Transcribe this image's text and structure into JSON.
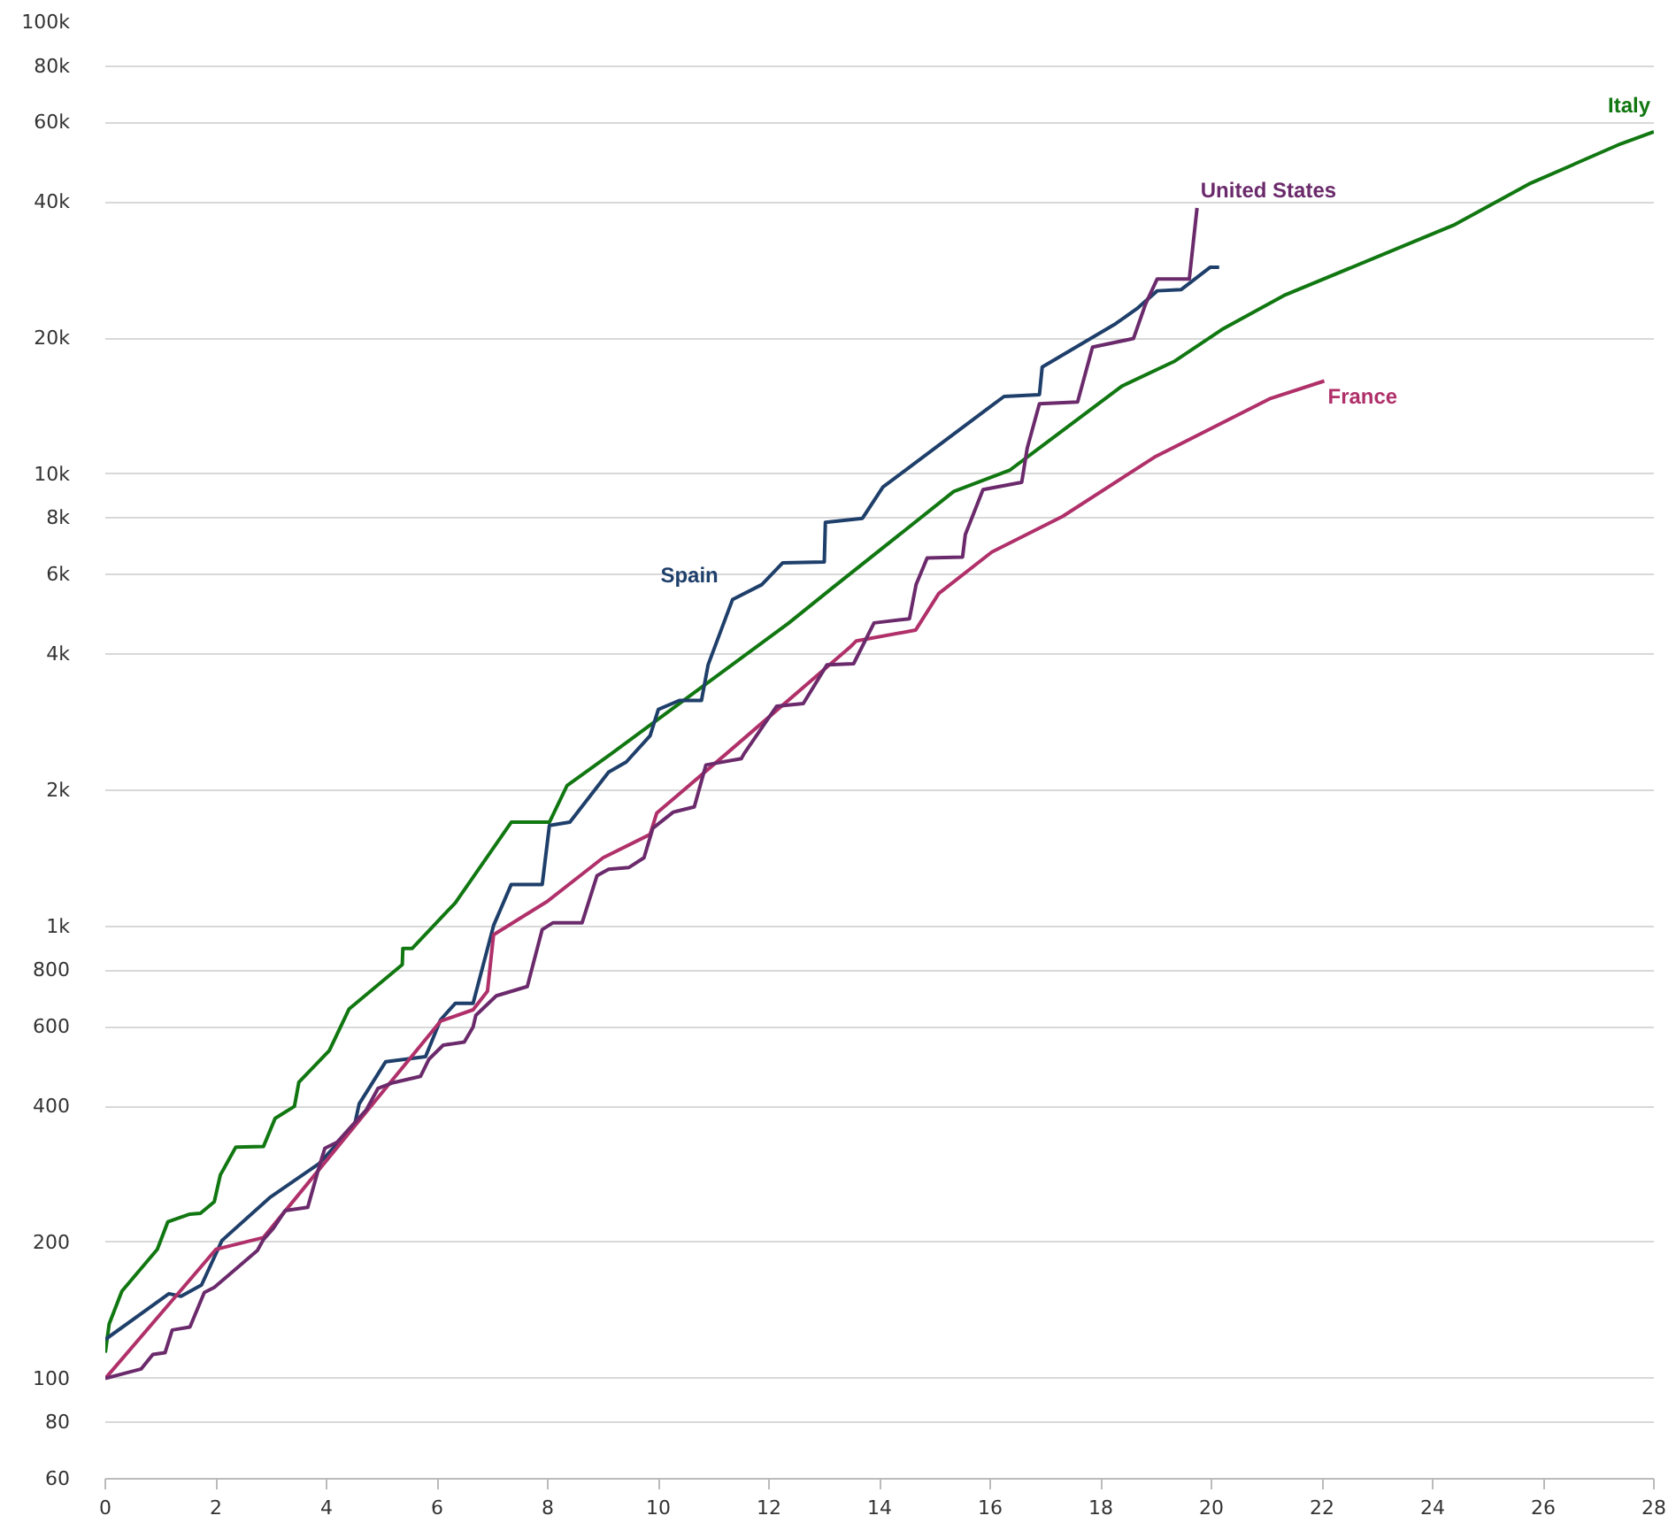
{
  "chart_data": {
    "type": "line",
    "log": "y",
    "grid": "y",
    "xlim": [
      0,
      28
    ],
    "xticks": [
      0,
      2,
      4,
      6,
      8,
      10,
      12,
      14,
      16,
      18,
      20,
      22,
      24,
      26,
      28
    ],
    "ylim": [
      60,
      100000
    ],
    "yticks": [
      {
        "value": 60,
        "label": "60"
      },
      {
        "value": 80,
        "label": "80"
      },
      {
        "value": 100,
        "label": "100"
      },
      {
        "value": 200,
        "label": "200"
      },
      {
        "value": 400,
        "label": "400"
      },
      {
        "value": 600,
        "label": "600"
      },
      {
        "value": 800,
        "label": "800"
      },
      {
        "value": 1000,
        "label": "1k"
      },
      {
        "value": 2000,
        "label": "2k"
      },
      {
        "value": 4000,
        "label": "4k"
      },
      {
        "value": 6000,
        "label": "6k"
      },
      {
        "value": 8000,
        "label": "8k"
      },
      {
        "value": 10000,
        "label": "10k"
      },
      {
        "value": 20000,
        "label": "20k"
      },
      {
        "value": 40000,
        "label": "40k"
      },
      {
        "value": 60000,
        "label": "60k"
      },
      {
        "value": 80000,
        "label": "80k"
      },
      {
        "value": 100000,
        "label": "100k"
      }
    ],
    "series": [
      {
        "name": "Italy",
        "color": "#117711",
        "x": [
          0,
          0.07,
          0.3,
          0.94,
          1.13,
          1.53,
          1.72,
          1.97,
          2.08,
          2.36,
          2.86,
          3.07,
          3.42,
          3.5,
          4.05,
          4.41,
          5.37,
          5.38,
          5.55,
          6.33,
          7.34,
          8.03,
          8.35,
          9.15,
          12.35,
          13.15,
          15.34,
          16.35,
          18.38,
          19.34,
          20.19,
          21.31,
          24.4,
          25.74,
          27.4,
          28.0
        ],
        "values": [
          114,
          132,
          156,
          193,
          222,
          231,
          232,
          246,
          282,
          325,
          326,
          376,
          400,
          452,
          531,
          657,
          823,
          894,
          894,
          1128,
          1700,
          1700,
          2050,
          2410,
          4680,
          5610,
          9160,
          10200,
          15660,
          17800,
          20900,
          24850,
          35660,
          43850,
          53800,
          57200
        ]
      },
      {
        "name": "Spain",
        "color": "#1f3f6b",
        "x": [
          0,
          1.15,
          1.37,
          1.74,
          2.11,
          2.97,
          3.87,
          4.51,
          4.59,
          5.07,
          5.79,
          6.06,
          6.33,
          6.65,
          7.02,
          7.34,
          7.9,
          8.03,
          8.4,
          9.1,
          9.42,
          9.85,
          10.0,
          10.38,
          10.78,
          10.9,
          11.34,
          11.87,
          12.25,
          13.0,
          13.02,
          13.69,
          14.06,
          15.07,
          15.93,
          16.25,
          16.89,
          16.94,
          18.27,
          18.65,
          19.02,
          19.45,
          19.98,
          20.14
        ],
        "values": [
          122,
          154,
          152,
          161,
          202,
          251,
          299,
          365,
          405,
          502,
          515,
          621,
          676,
          676,
          1004,
          1238,
          1238,
          1672,
          1700,
          2194,
          2310,
          2640,
          3020,
          3160,
          3160,
          3790,
          5280,
          5700,
          6370,
          6400,
          7830,
          7990,
          9370,
          11590,
          13900,
          14860,
          15000,
          17260,
          21530,
          23220,
          25450,
          25600,
          28700,
          28700
        ]
      },
      {
        "name": "France",
        "color": "#b0306a",
        "x": [
          0,
          2.0,
          2.86,
          6.06,
          6.65,
          6.91,
          7.02,
          7.98,
          9.0,
          9.85,
          9.97,
          11.23,
          13.47,
          13.58,
          14.65,
          15.07,
          16.03,
          17.31,
          18.97,
          21.05,
          22.04
        ],
        "values": [
          100,
          193,
          205,
          617,
          654,
          719,
          958,
          1133,
          1418,
          1597,
          1780,
          2410,
          4150,
          4280,
          4520,
          5450,
          6730,
          8070,
          10910,
          14680,
          16080
        ]
      },
      {
        "name": "United States",
        "color": "#6b2a6b",
        "x": [
          0,
          0.65,
          0.86,
          1.08,
          1.21,
          1.53,
          1.79,
          1.97,
          2.75,
          2.86,
          3.04,
          3.25,
          3.66,
          3.87,
          3.97,
          4.19,
          4.72,
          4.93,
          5.2,
          5.7,
          5.85,
          6.11,
          6.49,
          6.65,
          6.7,
          7.07,
          7.63,
          7.9,
          8.09,
          8.62,
          8.89,
          9.1,
          9.47,
          9.74,
          9.9,
          10.27,
          10.65,
          10.86,
          11.5,
          11.55,
          12.14,
          12.62,
          13.05,
          13.53,
          13.9,
          14.54,
          14.66,
          14.86,
          15.5,
          15.55,
          15.87,
          16.57,
          16.67,
          16.89,
          17.58,
          17.85,
          18.59,
          18.81,
          19.02,
          19.6,
          19.74
        ],
        "values": [
          100,
          105,
          113,
          114,
          128,
          130,
          155,
          159,
          192,
          203,
          215,
          235,
          239,
          295,
          323,
          333,
          393,
          438,
          451,
          466,
          508,
          546,
          555,
          599,
          636,
          702,
          736,
          984,
          1018,
          1018,
          1294,
          1338,
          1350,
          1418,
          1648,
          1790,
          1838,
          2275,
          2350,
          2410,
          3070,
          3110,
          3790,
          3810,
          4690,
          4790,
          5700,
          6530,
          6560,
          7360,
          9250,
          9600,
          11430,
          14320,
          14450,
          19100,
          19960,
          23810,
          27040,
          27040,
          38800
        ]
      }
    ]
  }
}
